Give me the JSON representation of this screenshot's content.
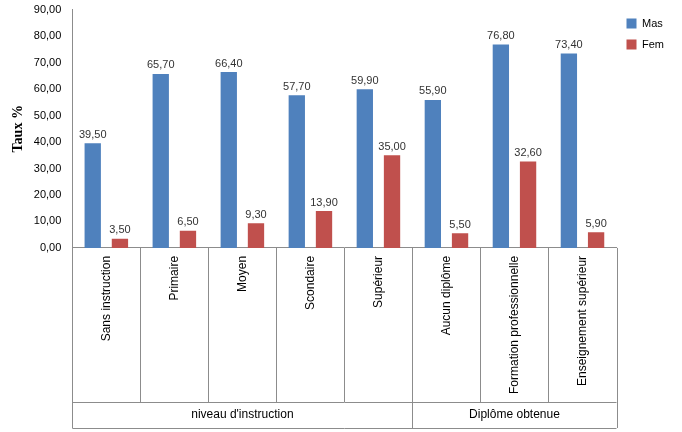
{
  "chart_data": {
    "type": "bar",
    "y_label": "Taux %",
    "groups": [
      {
        "name": "niveau d'instruction",
        "categories": [
          "Sans instruction",
          "Primaire",
          "Moyen",
          "Scondaire",
          "Supérieur"
        ]
      },
      {
        "name": "Diplôme obtenue",
        "categories": [
          "Aucun diplôme",
          "Formation professionnelle",
          "Enseignement supérieur"
        ]
      }
    ],
    "series": [
      {
        "name": "Mas",
        "color": "#4f81bd",
        "values": [
          39.5,
          65.7,
          66.4,
          57.7,
          59.9,
          55.9,
          76.8,
          73.4
        ],
        "value_labels": [
          "39,50",
          "65,70",
          "66,40",
          "57,70",
          "59,90",
          "55,90",
          "76,80",
          "73,40"
        ]
      },
      {
        "name": "Fem",
        "color": "#c0504d",
        "values": [
          3.5,
          6.5,
          9.3,
          13.9,
          35.0,
          5.5,
          32.6,
          5.9
        ],
        "value_labels": [
          "3,50",
          "6,50",
          "9,30",
          "13,90",
          "35,00",
          "5,50",
          "32,60",
          "5,90"
        ]
      }
    ],
    "ylim": [
      0,
      90
    ],
    "yticks": [
      {
        "value": 0,
        "label": "0,00"
      },
      {
        "value": 10,
        "label": "10,00"
      },
      {
        "value": 20,
        "label": "20,00"
      },
      {
        "value": 30,
        "label": "30,00"
      },
      {
        "value": 40,
        "label": "40,00"
      },
      {
        "value": 50,
        "label": "50,00"
      },
      {
        "value": 60,
        "label": "60,00"
      },
      {
        "value": 70,
        "label": "70,00"
      },
      {
        "value": 80,
        "label": "80,00"
      },
      {
        "value": 90,
        "label": "90,00"
      }
    ],
    "grid": false,
    "legend": "top-right",
    "data_labels": true
  }
}
